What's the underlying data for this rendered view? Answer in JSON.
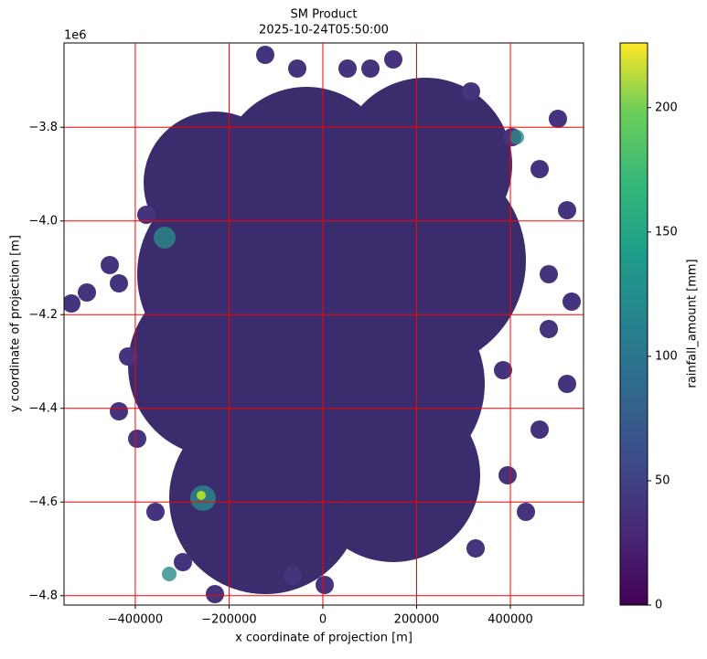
{
  "chart_data": {
    "type": "heatmap",
    "title": "SM Product",
    "subtitle": "2025-10-24T05:50:00",
    "x_label": "x coordinate of projection [m]",
    "y_label": "y coordinate of projection [m]",
    "y_offset_label": "1e6",
    "xlim": [
      -552000,
      556000
    ],
    "ylim": [
      -4820000,
      -3620000
    ],
    "xticks": [
      {
        "value": -400000,
        "label": "−400000"
      },
      {
        "value": -200000,
        "label": "−200000"
      },
      0,
      200000,
      400000
    ],
    "yticks": [
      {
        "value": -4800000,
        "label": "−4.8"
      },
      {
        "value": -4600000,
        "label": "−4.6"
      },
      {
        "value": -4400000,
        "label": "−4.4"
      },
      {
        "value": -4200000,
        "label": "−4.2"
      },
      {
        "value": -4000000,
        "label": "−4.0"
      },
      {
        "value": -3800000,
        "label": "−3.8"
      }
    ],
    "grid": true,
    "grid_color": "red",
    "colorbar": {
      "label": "rainfall_amount [mm]",
      "lim": [
        0,
        226
      ],
      "ticks": [
        0,
        50,
        100,
        150,
        200
      ],
      "cmap": "viridis"
    }
  }
}
